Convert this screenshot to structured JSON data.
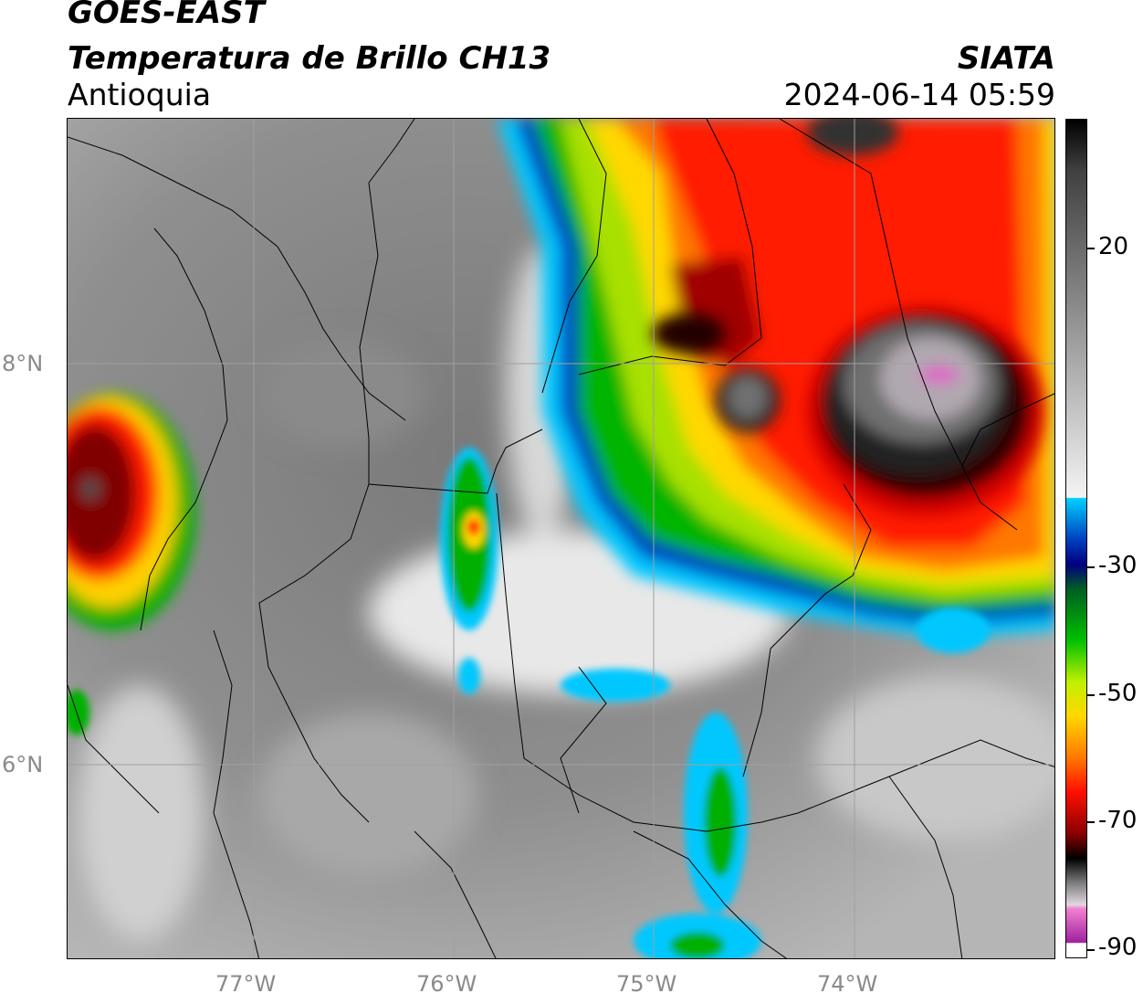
{
  "header": {
    "satellite": "GOES-EAST",
    "product": "Temperatura de Brillo CH13",
    "region": "Antioquia",
    "org": "SIATA",
    "datetime": "2024-06-14 05:59"
  },
  "map": {
    "lon_labels": [
      "77°W",
      "76°W",
      "75°W",
      "74°W"
    ],
    "lat_labels": [
      "8°N",
      "6°N"
    ],
    "lon_range": [
      -77.93,
      -73.0
    ],
    "lat_range": [
      5.0,
      9.2
    ]
  },
  "colorbar": {
    "tick_labels": [
      "20",
      "-30",
      "-50",
      "-70",
      "-90"
    ],
    "tick_values": [
      20,
      -30,
      -50,
      -70,
      -90
    ],
    "range": [
      -92,
      34
    ],
    "colors": {
      "magenta": "#a020a0",
      "pink": "#e060c0",
      "black": "#000000",
      "dark_red": "#8b0000",
      "red": "#ff0000",
      "orange": "#ff8c00",
      "yellow": "#ffff00",
      "green": "#00b000",
      "dark_blue": "#000080",
      "cyan": "#00d0ff",
      "light_gray": "#f0f0f0",
      "gray": "#808080",
      "black_top": "#000000"
    }
  }
}
